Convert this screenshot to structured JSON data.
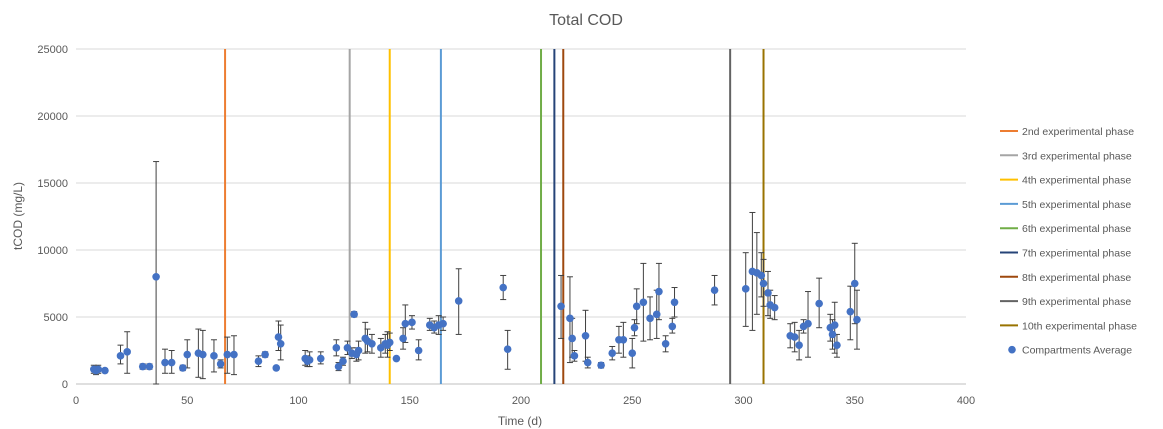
{
  "chart_data": {
    "type": "scatter",
    "title": "Total COD",
    "xlabel": "Time (d)",
    "ylabel": "tCOD (mg/L)",
    "xlim": [
      0,
      400
    ],
    "ylim": [
      0,
      25000
    ],
    "xticks": [
      "0",
      "50",
      "100",
      "150",
      "200",
      "250",
      "300",
      "350",
      "400"
    ],
    "yticks": [
      "0",
      "5000",
      "10000",
      "15000",
      "20000",
      "25000"
    ],
    "grid": "horizontal",
    "legend_position": "right",
    "phases": [
      {
        "name": "2nd experimental phase",
        "x": 67,
        "color": "#ED7D31"
      },
      {
        "name": "3rd experimental phase",
        "x": 123,
        "color": "#A5A5A5"
      },
      {
        "name": "4th experimental phase",
        "x": 141,
        "color": "#FFC000"
      },
      {
        "name": "5th experimental phase",
        "x": 164,
        "color": "#5B9BD5"
      },
      {
        "name": "6th experimental phase",
        "x": 209,
        "color": "#70AD47"
      },
      {
        "name": "7th experimental phase",
        "x": 215,
        "color": "#264478"
      },
      {
        "name": "8th experimental phase",
        "x": 219,
        "color": "#9E480E"
      },
      {
        "name": "9th experimental phase",
        "x": 294,
        "color": "#636363"
      },
      {
        "name": "10th experimental phase",
        "x": 309,
        "color": "#997300"
      }
    ],
    "series": [
      {
        "name": "Compartments Average",
        "color": "#4472C4",
        "points": [
          {
            "x": 8,
            "y": 1100,
            "lo": 800,
            "hi": 1400
          },
          {
            "x": 9,
            "y": 1000,
            "lo": 700,
            "hi": 1300
          },
          {
            "x": 10,
            "y": 1100,
            "lo": 800,
            "hi": 1400
          },
          {
            "x": 13,
            "y": 1000,
            "lo": 850,
            "hi": 1150
          },
          {
            "x": 20,
            "y": 2100,
            "lo": 1500,
            "hi": 2900
          },
          {
            "x": 23,
            "y": 2400,
            "lo": 800,
            "hi": 3900
          },
          {
            "x": 30,
            "y": 1300,
            "lo": 1100,
            "hi": 1500
          },
          {
            "x": 33,
            "y": 1300,
            "lo": 1100,
            "hi": 1500
          },
          {
            "x": 36,
            "y": 8000,
            "lo": 0,
            "hi": 16600
          },
          {
            "x": 40,
            "y": 1600,
            "lo": 800,
            "hi": 2600
          },
          {
            "x": 43,
            "y": 1600,
            "lo": 800,
            "hi": 2500
          },
          {
            "x": 48,
            "y": 1200,
            "lo": 1000,
            "hi": 1400
          },
          {
            "x": 50,
            "y": 2200,
            "lo": 1200,
            "hi": 3300
          },
          {
            "x": 55,
            "y": 2300,
            "lo": 500,
            "hi": 4100
          },
          {
            "x": 57,
            "y": 2200,
            "lo": 400,
            "hi": 4000
          },
          {
            "x": 62,
            "y": 2100,
            "lo": 900,
            "hi": 3300
          },
          {
            "x": 65,
            "y": 1500,
            "lo": 1200,
            "hi": 1800
          },
          {
            "x": 68,
            "y": 2200,
            "lo": 800,
            "hi": 3500
          },
          {
            "x": 71,
            "y": 2200,
            "lo": 700,
            "hi": 3600
          },
          {
            "x": 82,
            "y": 1700,
            "lo": 1300,
            "hi": 2100
          },
          {
            "x": 85,
            "y": 2200,
            "lo": 2000,
            "hi": 2400
          },
          {
            "x": 90,
            "y": 1200,
            "lo": 1100,
            "hi": 1300
          },
          {
            "x": 91,
            "y": 3500,
            "lo": 2500,
            "hi": 4700
          },
          {
            "x": 92,
            "y": 3000,
            "lo": 1800,
            "hi": 4400
          },
          {
            "x": 103,
            "y": 1900,
            "lo": 1400,
            "hi": 2500
          },
          {
            "x": 104,
            "y": 1700,
            "lo": 1300,
            "hi": 2100
          },
          {
            "x": 105,
            "y": 1800,
            "lo": 1300,
            "hi": 2400
          },
          {
            "x": 110,
            "y": 1900,
            "lo": 1500,
            "hi": 2400
          },
          {
            "x": 117,
            "y": 2700,
            "lo": 2100,
            "hi": 3300
          },
          {
            "x": 118,
            "y": 1300,
            "lo": 1000,
            "hi": 1600
          },
          {
            "x": 120,
            "y": 1700,
            "lo": 1400,
            "hi": 2000
          },
          {
            "x": 122,
            "y": 2700,
            "lo": 2200,
            "hi": 3200
          },
          {
            "x": 124,
            "y": 2300,
            "lo": 1900,
            "hi": 2700
          },
          {
            "x": 125,
            "y": 5200,
            "lo": 5000,
            "hi": 5400
          },
          {
            "x": 126,
            "y": 2200,
            "lo": 1700,
            "hi": 2700
          },
          {
            "x": 127,
            "y": 2500,
            "lo": 1800,
            "hi": 3200
          },
          {
            "x": 130,
            "y": 3400,
            "lo": 2300,
            "hi": 4600
          },
          {
            "x": 131,
            "y": 3200,
            "lo": 2400,
            "hi": 4100
          },
          {
            "x": 133,
            "y": 3000,
            "lo": 2300,
            "hi": 3700
          },
          {
            "x": 137,
            "y": 2700,
            "lo": 2000,
            "hi": 3400
          },
          {
            "x": 139,
            "y": 3000,
            "lo": 2300,
            "hi": 3700
          },
          {
            "x": 140,
            "y": 2900,
            "lo": 2000,
            "hi": 3900
          },
          {
            "x": 141,
            "y": 3100,
            "lo": 2500,
            "hi": 3800
          },
          {
            "x": 144,
            "y": 1900,
            "lo": 1800,
            "hi": 2000
          },
          {
            "x": 147,
            "y": 3400,
            "lo": 2600,
            "hi": 4200
          },
          {
            "x": 148,
            "y": 4500,
            "lo": 3100,
            "hi": 5900
          },
          {
            "x": 151,
            "y": 4600,
            "lo": 4100,
            "hi": 5100
          },
          {
            "x": 154,
            "y": 2500,
            "lo": 1800,
            "hi": 3300
          },
          {
            "x": 159,
            "y": 4400,
            "lo": 4000,
            "hi": 4900
          },
          {
            "x": 161,
            "y": 4200,
            "lo": 3800,
            "hi": 4700
          },
          {
            "x": 163,
            "y": 4400,
            "lo": 3700,
            "hi": 5100
          },
          {
            "x": 165,
            "y": 4500,
            "lo": 4000,
            "hi": 5000
          },
          {
            "x": 172,
            "y": 6200,
            "lo": 3700,
            "hi": 8600
          },
          {
            "x": 192,
            "y": 7200,
            "lo": 6300,
            "hi": 8100
          },
          {
            "x": 194,
            "y": 2600,
            "lo": 1100,
            "hi": 4000
          },
          {
            "x": 218,
            "y": 5800,
            "lo": 3400,
            "hi": 8100
          },
          {
            "x": 222,
            "y": 4900,
            "lo": 1600,
            "hi": 8000
          },
          {
            "x": 223,
            "y": 3400,
            "lo": 2000,
            "hi": 4900
          },
          {
            "x": 224,
            "y": 2100,
            "lo": 1700,
            "hi": 2500
          },
          {
            "x": 229,
            "y": 3600,
            "lo": 1700,
            "hi": 5500
          },
          {
            "x": 230,
            "y": 1600,
            "lo": 1200,
            "hi": 2000
          },
          {
            "x": 236,
            "y": 1400,
            "lo": 1200,
            "hi": 1600
          },
          {
            "x": 241,
            "y": 2300,
            "lo": 1800,
            "hi": 2800
          },
          {
            "x": 244,
            "y": 3300,
            "lo": 2300,
            "hi": 4300
          },
          {
            "x": 246,
            "y": 3300,
            "lo": 2000,
            "hi": 4600
          },
          {
            "x": 250,
            "y": 2300,
            "lo": 1200,
            "hi": 3400
          },
          {
            "x": 251,
            "y": 4200,
            "lo": 3600,
            "hi": 4800
          },
          {
            "x": 252,
            "y": 5800,
            "lo": 4500,
            "hi": 7100
          },
          {
            "x": 255,
            "y": 6100,
            "lo": 3200,
            "hi": 9000
          },
          {
            "x": 258,
            "y": 4900,
            "lo": 3300,
            "hi": 6500
          },
          {
            "x": 261,
            "y": 5200,
            "lo": 3400,
            "hi": 7000
          },
          {
            "x": 262,
            "y": 6900,
            "lo": 4800,
            "hi": 9000
          },
          {
            "x": 265,
            "y": 3000,
            "lo": 2400,
            "hi": 3600
          },
          {
            "x": 268,
            "y": 4300,
            "lo": 3800,
            "hi": 4900
          },
          {
            "x": 269,
            "y": 6100,
            "lo": 5000,
            "hi": 7200
          },
          {
            "x": 287,
            "y": 7000,
            "lo": 5900,
            "hi": 8100
          },
          {
            "x": 301,
            "y": 7100,
            "lo": 4300,
            "hi": 9800
          },
          {
            "x": 304,
            "y": 8400,
            "lo": 4000,
            "hi": 12800
          },
          {
            "x": 306,
            "y": 8300,
            "lo": 5200,
            "hi": 11300
          },
          {
            "x": 308,
            "y": 8100,
            "lo": 6500,
            "hi": 9800
          },
          {
            "x": 309,
            "y": 7500,
            "lo": 5800,
            "hi": 9300
          },
          {
            "x": 311,
            "y": 6800,
            "lo": 5100,
            "hi": 8400
          },
          {
            "x": 312,
            "y": 5900,
            "lo": 4900,
            "hi": 7000
          },
          {
            "x": 314,
            "y": 5700,
            "lo": 4800,
            "hi": 6600
          },
          {
            "x": 321,
            "y": 3600,
            "lo": 2700,
            "hi": 4500
          },
          {
            "x": 323,
            "y": 3500,
            "lo": 2400,
            "hi": 4600
          },
          {
            "x": 325,
            "y": 2900,
            "lo": 1800,
            "hi": 4000
          },
          {
            "x": 327,
            "y": 4300,
            "lo": 3800,
            "hi": 4800
          },
          {
            "x": 329,
            "y": 4500,
            "lo": 2000,
            "hi": 6900
          },
          {
            "x": 334,
            "y": 6000,
            "lo": 4200,
            "hi": 7900
          },
          {
            "x": 339,
            "y": 4200,
            "lo": 3200,
            "hi": 5200
          },
          {
            "x": 340,
            "y": 3700,
            "lo": 2600,
            "hi": 4800
          },
          {
            "x": 341,
            "y": 4400,
            "lo": 2300,
            "hi": 6100
          },
          {
            "x": 342,
            "y": 2900,
            "lo": 2000,
            "hi": 3700
          },
          {
            "x": 348,
            "y": 5400,
            "lo": 3300,
            "hi": 7300
          },
          {
            "x": 350,
            "y": 7500,
            "lo": 4500,
            "hi": 10500
          },
          {
            "x": 351,
            "y": 4800,
            "lo": 2600,
            "hi": 7000
          }
        ]
      }
    ]
  },
  "legend": {
    "items": [
      "2nd experimental phase",
      "3rd experimental phase",
      "4th experimental phase",
      "5th experimental phase",
      "6th experimental phase",
      "7th experimental phase",
      "8th experimental phase",
      "9th experimental phase",
      "10th experimental phase",
      "Compartments Average"
    ]
  }
}
